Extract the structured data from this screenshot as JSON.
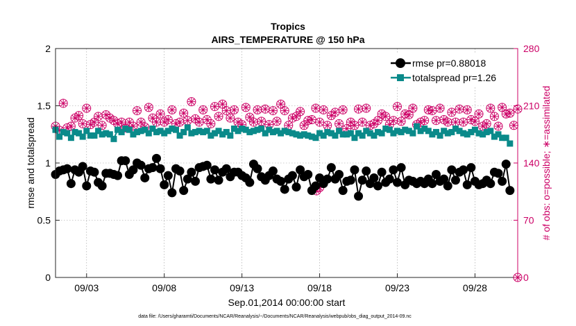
{
  "chart_data": {
    "type": "line",
    "title": "Tropics",
    "subtitle": "AIRS_TEMPERATURE @ 150 hPa",
    "xlabel": "Sep.01,2014 00:00:00 start",
    "ylabel": "rmse and totalspread",
    "y2label": "# of obs: o=possible; ∗=assimilated",
    "footer": "data file: /Users/gharamti/Documents/NCAR/Reanalysis/~/Documents/NCAR/Reanalysis/webpub/obs_diag_output_2014-09.nc",
    "xlim": [
      1.0,
      30.75
    ],
    "ylim": [
      0,
      2
    ],
    "y2lim": [
      0,
      280
    ],
    "x_ticks": [
      3,
      8,
      13,
      18,
      23,
      28
    ],
    "x_tick_labels": [
      "09/03",
      "09/08",
      "09/13",
      "09/18",
      "09/23",
      "09/28"
    ],
    "y_ticks": [
      0,
      0.5,
      1,
      1.5,
      2
    ],
    "y_tick_labels": [
      "0",
      "0.5",
      "1",
      "1.5",
      "2"
    ],
    "y2_ticks": [
      0,
      70,
      140,
      210,
      280
    ],
    "y2_tick_labels": [
      "0",
      "70",
      "140",
      "210",
      "280"
    ],
    "legend_position": "top-right",
    "x_start": 1.0,
    "x_step": 0.25,
    "series": [
      {
        "name": "rmse pr=0.88018",
        "axis": "left",
        "color": "#000000",
        "marker": "circle",
        "values": [
          0.9,
          0.93,
          0.94,
          0.95,
          0.82,
          0.94,
          0.92,
          0.97,
          0.8,
          0.93,
          0.92,
          0.83,
          0.8,
          0.91,
          0.91,
          0.9,
          0.89,
          1.02,
          1.02,
          0.9,
          0.94,
          1.0,
          0.98,
          0.87,
          0.95,
          0.96,
          1.04,
          0.95,
          0.81,
          0.89,
          0.74,
          0.95,
          0.93,
          0.76,
          0.86,
          0.92,
          0.84,
          0.96,
          0.97,
          0.98,
          0.86,
          0.94,
          0.85,
          0.92,
          0.95,
          0.88,
          0.92,
          0.92,
          0.89,
          0.87,
          0.83,
          0.99,
          0.95,
          0.88,
          0.85,
          0.89,
          0.93,
          0.86,
          0.84,
          0.77,
          0.86,
          0.89,
          0.79,
          0.94,
          0.88,
          0.9,
          0.76,
          0.8,
          0.87,
          0.82,
          0.86,
          0.96,
          0.86,
          0.9,
          0.76,
          0.84,
          0.85,
          0.94,
          0.71,
          0.85,
          0.93,
          0.82,
          0.87,
          0.8,
          0.92,
          0.83,
          0.86,
          0.94,
          0.83,
          0.96,
          0.81,
          0.85,
          0.84,
          0.82,
          0.84,
          0.82,
          0.86,
          0.82,
          0.9,
          0.84,
          0.86,
          0.8,
          0.94,
          0.85,
          0.92,
          0.94,
          0.81,
          0.96,
          0.84,
          0.81,
          0.82,
          0.85,
          0.82,
          0.92,
          0.91,
          0.84,
          0.99,
          0.76
        ]
      },
      {
        "name": "totalspread pr=1.26",
        "axis": "left",
        "color": "#0a8a8a",
        "marker": "square",
        "values": [
          1.29,
          1.23,
          1.27,
          1.26,
          1.22,
          1.27,
          1.26,
          1.23,
          1.28,
          1.24,
          1.24,
          1.28,
          1.25,
          1.26,
          1.25,
          1.21,
          1.29,
          1.27,
          1.3,
          1.29,
          1.25,
          1.27,
          1.28,
          1.29,
          1.26,
          1.3,
          1.27,
          1.28,
          1.26,
          1.28,
          1.3,
          1.29,
          1.24,
          1.27,
          1.31,
          1.26,
          1.27,
          1.28,
          1.27,
          1.28,
          1.24,
          1.26,
          1.28,
          1.25,
          1.27,
          1.24,
          1.3,
          1.28,
          1.3,
          1.29,
          1.27,
          1.28,
          1.29,
          1.3,
          1.26,
          1.29,
          1.27,
          1.28,
          1.26,
          1.28,
          1.27,
          1.26,
          1.25,
          1.24,
          1.25,
          1.24,
          1.23,
          1.22,
          1.26,
          1.24,
          1.27,
          1.26,
          1.24,
          1.28,
          1.25,
          1.25,
          1.26,
          1.22,
          1.26,
          1.24,
          1.28,
          1.26,
          1.24,
          1.27,
          1.26,
          1.3,
          1.29,
          1.26,
          1.28,
          1.27,
          1.29,
          1.28,
          1.26,
          1.32,
          1.28,
          1.3,
          1.28,
          1.25,
          1.27,
          1.24,
          1.28,
          1.26,
          1.27,
          1.3,
          1.28,
          1.26,
          1.25,
          1.27,
          1.29,
          1.26,
          1.25,
          1.27,
          1.28,
          1.23,
          1.25,
          1.22,
          1.22,
          1.17
        ]
      },
      {
        "name": "# of obs possible",
        "axis": "right",
        "color": "#cc0066",
        "marker": "circle-open",
        "values": [
          185,
          180,
          213,
          183,
          185,
          195,
          198,
          188,
          207,
          187,
          190,
          197,
          186,
          199,
          195,
          192,
          188,
          190,
          183,
          190,
          185,
          204,
          190,
          184,
          208,
          195,
          190,
          200,
          190,
          193,
          205,
          188,
          190,
          201,
          192,
          215,
          194,
          190,
          205,
          193,
          188,
          209,
          197,
          212,
          204,
          195,
          205,
          190,
          187,
          208,
          196,
          190,
          205,
          191,
          206,
          187,
          204,
          191,
          212,
          204,
          186,
          195,
          197,
          203,
          186,
          192,
          193,
          207,
          190,
          205,
          186,
          198,
          202,
          188,
          205,
          182,
          190,
          186,
          206,
          190,
          207,
          186,
          188,
          192,
          200,
          197,
          187,
          192,
          209,
          191,
          200,
          199,
          207,
          187,
          190,
          192,
          205,
          204,
          192,
          207,
          193,
          190,
          202,
          190,
          206,
          190,
          205,
          193,
          191,
          200,
          185,
          188,
          207,
          197,
          185,
          208,
          200,
          201,
          186,
          206
        ]
      },
      {
        "name": "# of obs assimilated",
        "axis": "right",
        "color": "#cc0066",
        "marker": "asterisk",
        "values": [
          185,
          180,
          213,
          183,
          185,
          195,
          198,
          188,
          207,
          187,
          190,
          197,
          186,
          199,
          195,
          192,
          188,
          190,
          183,
          190,
          185,
          204,
          190,
          184,
          208,
          195,
          190,
          200,
          190,
          193,
          205,
          188,
          190,
          201,
          192,
          215,
          194,
          190,
          205,
          193,
          188,
          209,
          197,
          212,
          204,
          195,
          205,
          190,
          187,
          208,
          196,
          190,
          205,
          191,
          206,
          187,
          204,
          191,
          212,
          204,
          186,
          195,
          197,
          203,
          186,
          192,
          193,
          207,
          190,
          205,
          186,
          198,
          202,
          188,
          205,
          182,
          190,
          186,
          206,
          190,
          207,
          186,
          188,
          192,
          200,
          197,
          187,
          192,
          209,
          191,
          200,
          199,
          207,
          187,
          190,
          192,
          205,
          204,
          192,
          207,
          193,
          190,
          202,
          190,
          206,
          190,
          205,
          193,
          191,
          200,
          185,
          188,
          207,
          197,
          185,
          208,
          200,
          201,
          186,
          206
        ]
      }
    ],
    "extra_points_right_axis": [
      {
        "x": 17.8,
        "value": 106
      },
      {
        "x": 18.0,
        "value": 110
      },
      {
        "x": 30.75,
        "value": 0
      }
    ]
  }
}
